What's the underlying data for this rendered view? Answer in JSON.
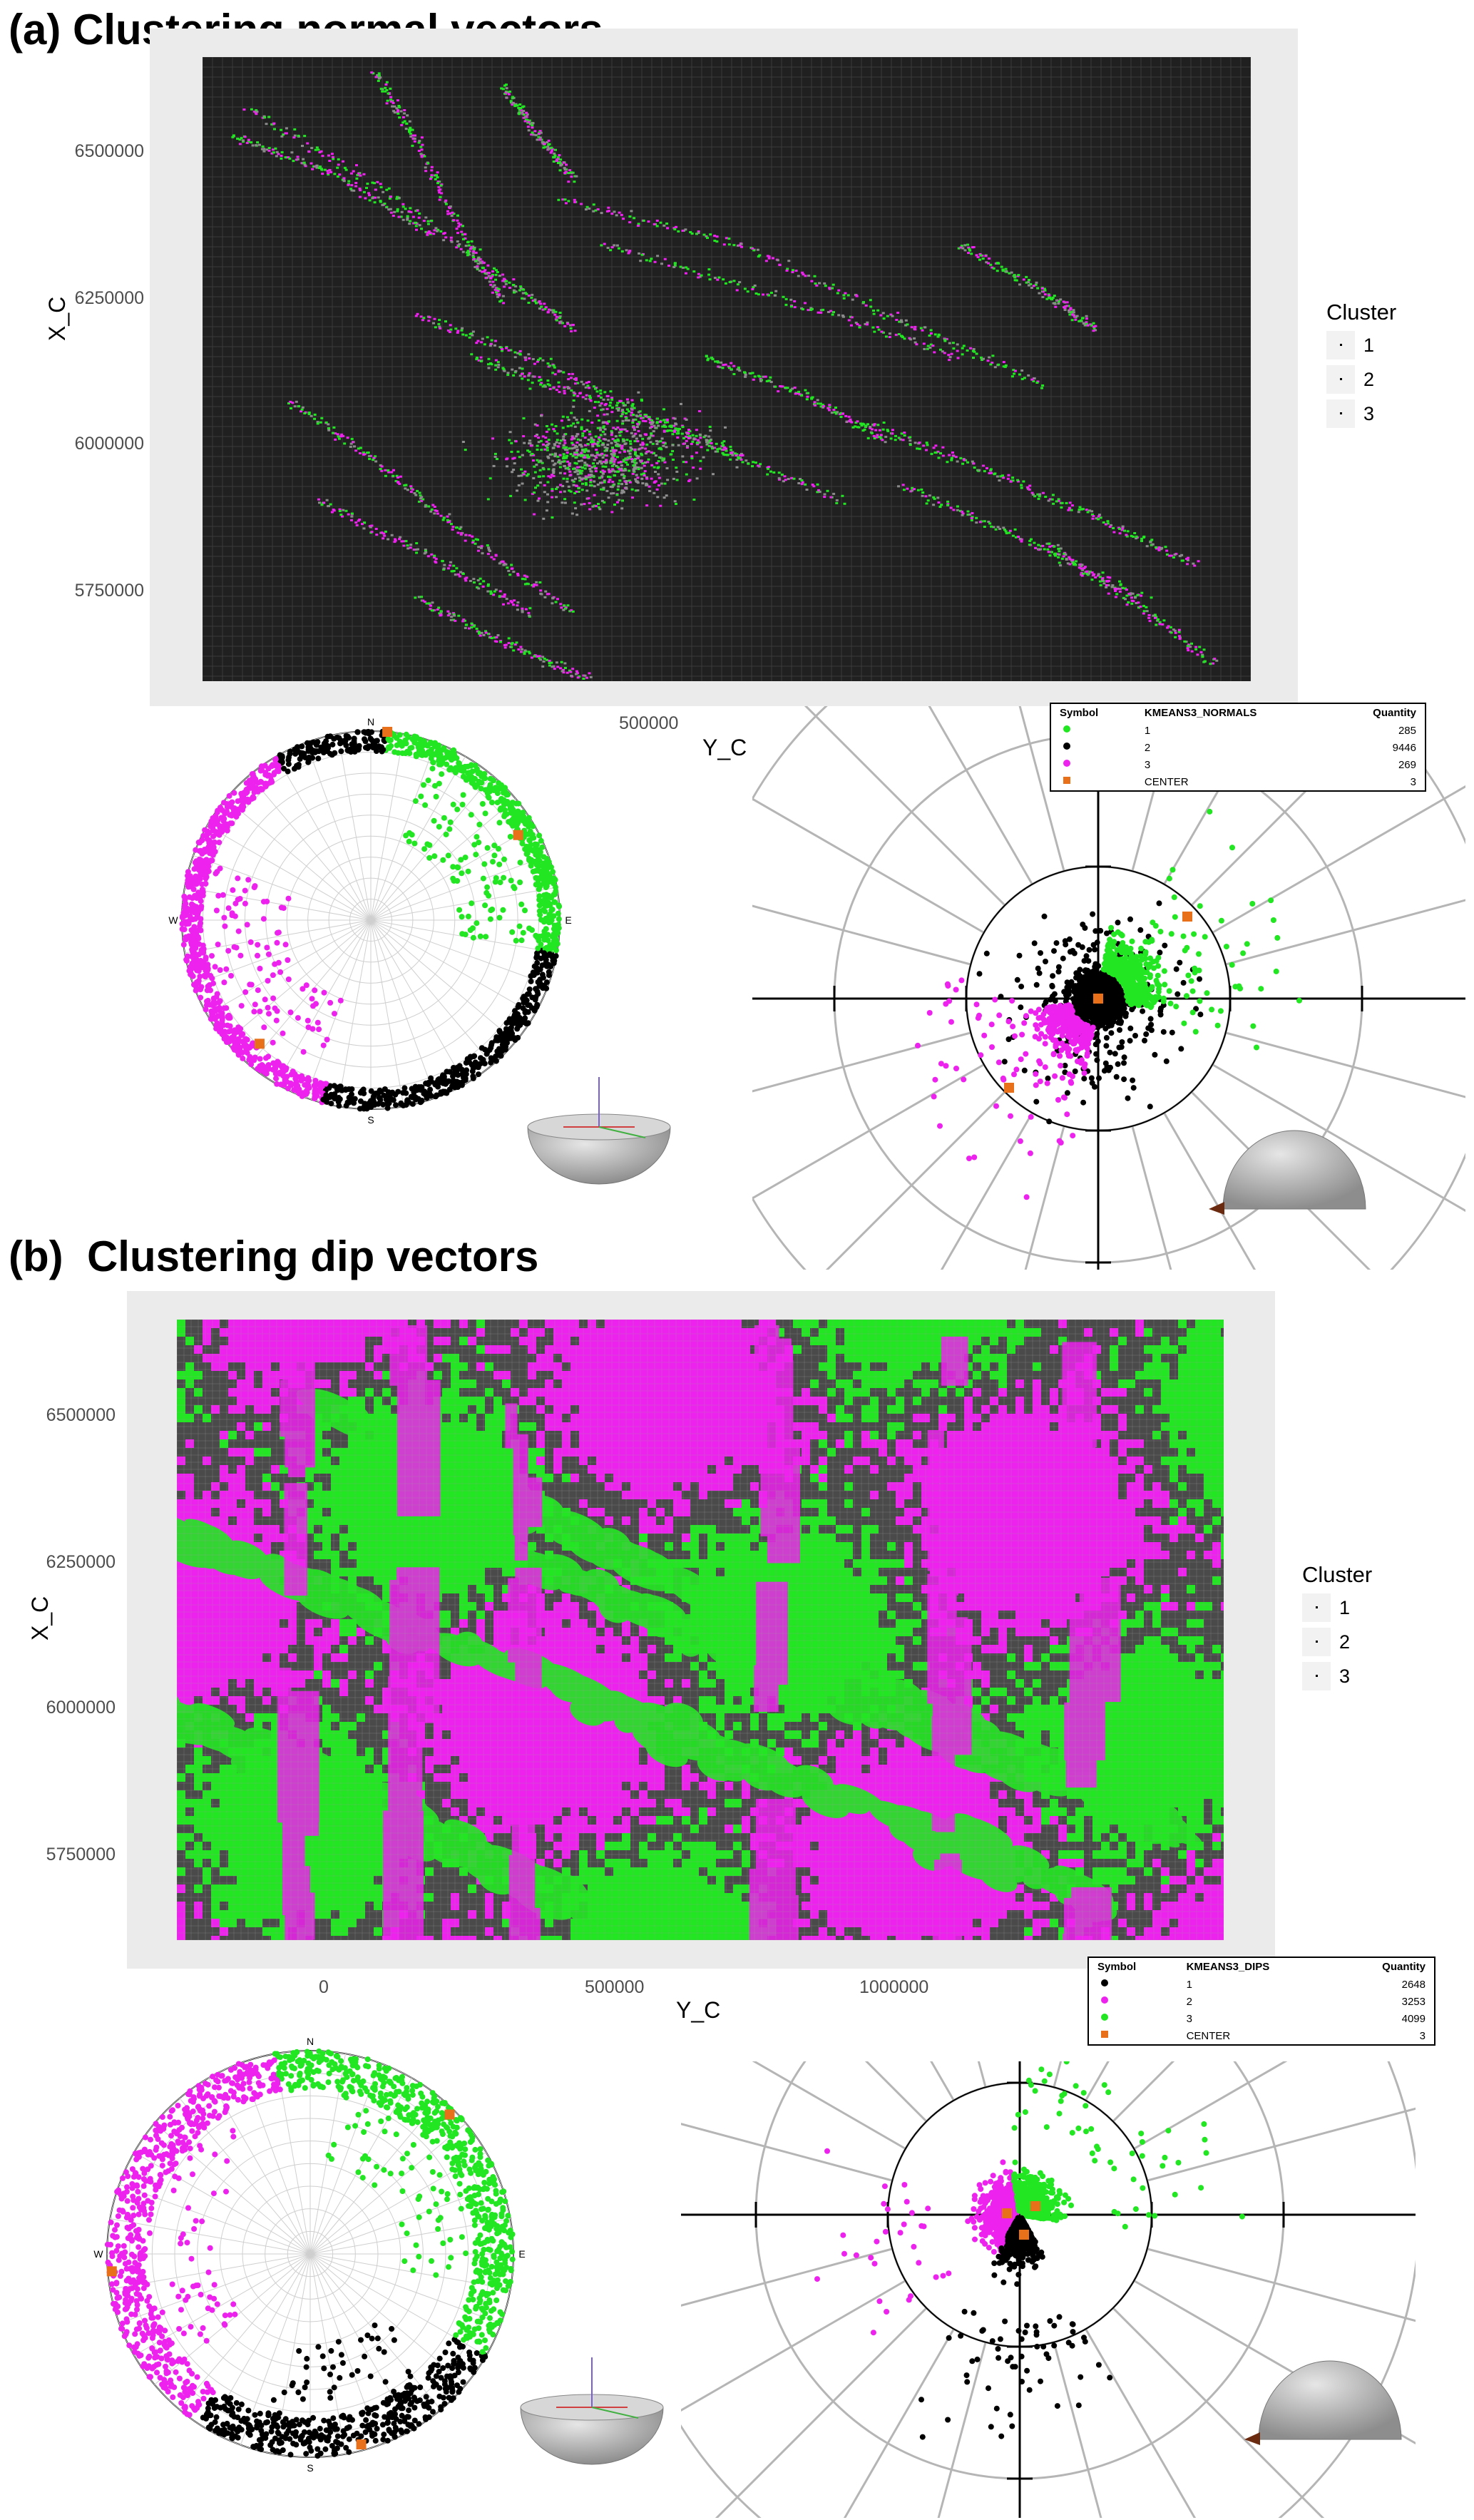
{
  "chart_data": [
    {
      "panel": "(a)",
      "type": "scatter",
      "title": "(a) Clustering normal vectors",
      "xlabel": "Y_C",
      "ylabel": "X_C",
      "xticks": [
        "500000"
      ],
      "xtick_values": [
        500000
      ],
      "yticks": [
        "6500000",
        "6250000",
        "6000000",
        "5750000"
      ],
      "ytick_values": [
        6500000,
        6250000,
        6000000,
        5750000
      ],
      "xlim": [
        -150000,
        1250000
      ],
      "ylim": [
        5600000,
        6660000
      ],
      "legend": {
        "title": "Cluster",
        "entries": [
          "1",
          "2",
          "3"
        ],
        "position": "right"
      },
      "stereonet_labels": {
        "n": "N",
        "e": "E",
        "s": "S",
        "w": "W"
      },
      "table": {
        "headers": [
          "Symbol",
          "KMEANS3_NORMALS",
          "Quantity"
        ],
        "rows": [
          {
            "color": "#22e622",
            "shape": "circle",
            "label": "1",
            "quantity": "285"
          },
          {
            "color": "#000000",
            "shape": "circle",
            "label": "2",
            "quantity": "9446"
          },
          {
            "color": "#ee22ee",
            "shape": "circle",
            "label": "3",
            "quantity": "269"
          },
          {
            "color": "#e8701a",
            "shape": "square",
            "label": "CENTER",
            "quantity": "3"
          }
        ]
      }
    },
    {
      "panel": "(b)",
      "type": "scatter",
      "title": "(b)  Clustering dip vectors",
      "xlabel": "Y_C",
      "ylabel": "X_C",
      "xticks": [
        "0",
        "500000",
        "1000000"
      ],
      "xtick_values": [
        0,
        500000,
        1000000
      ],
      "yticks": [
        "6500000",
        "6250000",
        "6000000",
        "5750000"
      ],
      "ytick_values": [
        6500000,
        6250000,
        6000000,
        5750000
      ],
      "xlim": [
        -255000,
        1605000
      ],
      "ylim": [
        5580000,
        6690000
      ],
      "legend": {
        "title": "Cluster",
        "entries": [
          "1",
          "2",
          "3"
        ],
        "position": "right"
      },
      "stereonet_labels": {
        "n": "N",
        "e": "E",
        "s": "S",
        "w": "W"
      },
      "table": {
        "headers": [
          "Symbol",
          "KMEANS3_DIPS",
          "Quantity"
        ],
        "rows": [
          {
            "color": "#000000",
            "shape": "circle",
            "label": "1",
            "quantity": "2648"
          },
          {
            "color": "#ee22ee",
            "shape": "circle",
            "label": "2",
            "quantity": "3253"
          },
          {
            "color": "#22e622",
            "shape": "circle",
            "label": "3",
            "quantity": "4099"
          },
          {
            "color": "#e8701a",
            "shape": "square",
            "label": "CENTER",
            "quantity": "3"
          }
        ]
      }
    }
  ],
  "colors": {
    "green": "#22e622",
    "black": "#000000",
    "magenta": "#ee22ee",
    "center": "#e8701a",
    "map_bg": "#222222"
  }
}
